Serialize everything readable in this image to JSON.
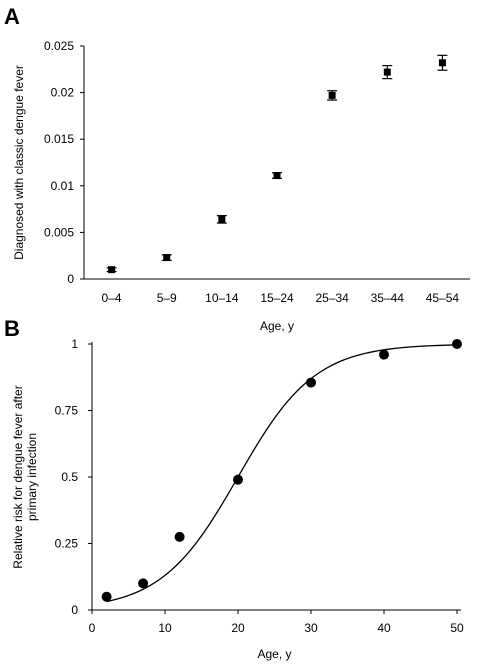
{
  "chart_data": [
    {
      "type": "scatter",
      "panel_label": "A",
      "title": "",
      "xlabel": "Age, y",
      "ylabel": "Diagnosed with classic dengue fever",
      "categories": [
        "0–4",
        "5–9",
        "10–14",
        "15–24",
        "25–34",
        "35–44",
        "45–54"
      ],
      "values": [
        0.001,
        0.0023,
        0.0064,
        0.0111,
        0.0197,
        0.0222,
        0.0232
      ],
      "error": [
        0.0002,
        0.0003,
        0.0004,
        0.0003,
        0.0005,
        0.0007,
        0.0008
      ],
      "ylim": [
        0,
        0.025
      ],
      "yticks": [
        "0",
        "0.005",
        "0.01",
        "0.015",
        "0.02",
        "0.025"
      ],
      "ytick_values": [
        0,
        0.005,
        0.01,
        0.015,
        0.02,
        0.025
      ],
      "marker": "square",
      "grid": false
    },
    {
      "type": "scatter",
      "panel_label": "B",
      "title": "",
      "xlabel": "Age, y",
      "ylabel": [
        "Relative risk for dengue fever after",
        "primary infection"
      ],
      "x": [
        2,
        7,
        12,
        20,
        30,
        40,
        50
      ],
      "y": [
        0.05,
        0.1,
        0.275,
        0.49,
        0.855,
        0.96,
        1.0
      ],
      "fit_curve": {
        "type": "logistic",
        "x0": 20,
        "k": 0.19,
        "ymax": 1.0
      },
      "xlim": [
        0,
        50
      ],
      "ylim": [
        0,
        1
      ],
      "xticks": [
        "0",
        "10",
        "20",
        "30",
        "40",
        "50"
      ],
      "xtick_values": [
        0,
        10,
        20,
        30,
        40,
        50
      ],
      "yticks": [
        "0",
        "0.25",
        "0.5",
        "0.75",
        "1"
      ],
      "ytick_values": [
        0,
        0.25,
        0.5,
        0.75,
        1
      ],
      "marker": "circle",
      "grid": false
    }
  ]
}
